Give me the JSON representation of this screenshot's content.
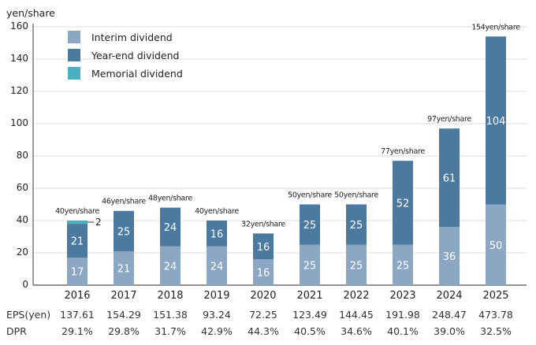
{
  "chart_data": {
    "type": "bar",
    "stacked": true,
    "ylabel": "yen/share",
    "ylim": [
      0,
      160
    ],
    "yticks": [
      "0",
      "20",
      "40",
      "60",
      "80",
      "100",
      "120",
      "140",
      "160"
    ],
    "grid": true,
    "legend_position": "top-left",
    "categories": [
      "2016",
      "2017",
      "2018",
      "2019",
      "2020",
      "2021",
      "2022",
      "2023",
      "2024",
      "2025"
    ],
    "series": [
      {
        "name": "Interim dividend",
        "color": "#8ba7c3",
        "values": [
          17,
          21,
          24,
          24,
          16,
          25,
          25,
          25,
          36,
          50
        ]
      },
      {
        "name": "Year-end dividend",
        "color": "#4b79a0",
        "values": [
          21,
          25,
          24,
          16,
          16,
          25,
          25,
          52,
          61,
          104
        ]
      },
      {
        "name": "Memorial dividend",
        "color": "#4bb1c2",
        "values": [
          2,
          0,
          0,
          0,
          0,
          0,
          0,
          0,
          0,
          0
        ]
      }
    ],
    "segment_labels": {
      "Interim dividend": [
        "17",
        "21",
        "24",
        "24",
        "16",
        "25",
        "25",
        "25",
        "36",
        "50"
      ],
      "Year-end dividend": [
        "21",
        "25",
        "24",
        "16",
        "16",
        "25",
        "25",
        "52",
        "61",
        "104"
      ],
      "Memorial dividend": [
        "2",
        "",
        "",
        "",
        "",
        "",
        "",
        "",
        "",
        ""
      ]
    },
    "totals": [
      40,
      46,
      48,
      40,
      32,
      50,
      50,
      77,
      97,
      154
    ],
    "total_labels": [
      "40yen/share",
      "46yen/share",
      "48yen/share",
      "40yen/share",
      "32yen/share",
      "50yen/share",
      "50yen/share",
      "77yen/share",
      "97yen/share",
      "154yen/share"
    ],
    "table_rows": [
      {
        "label": "EPS(yen)",
        "values": [
          "137.61",
          "154.29",
          "151.38",
          "93.24",
          "72.25",
          "123.49",
          "144.45",
          "191.98",
          "248.47",
          "473.78"
        ]
      },
      {
        "label": "DPR",
        "values": [
          "29.1%",
          "29.8%",
          "31.7%",
          "42.9%",
          "44.3%",
          "40.5%",
          "34.6%",
          "40.1%",
          "39.0%",
          "32.5%"
        ]
      }
    ]
  }
}
